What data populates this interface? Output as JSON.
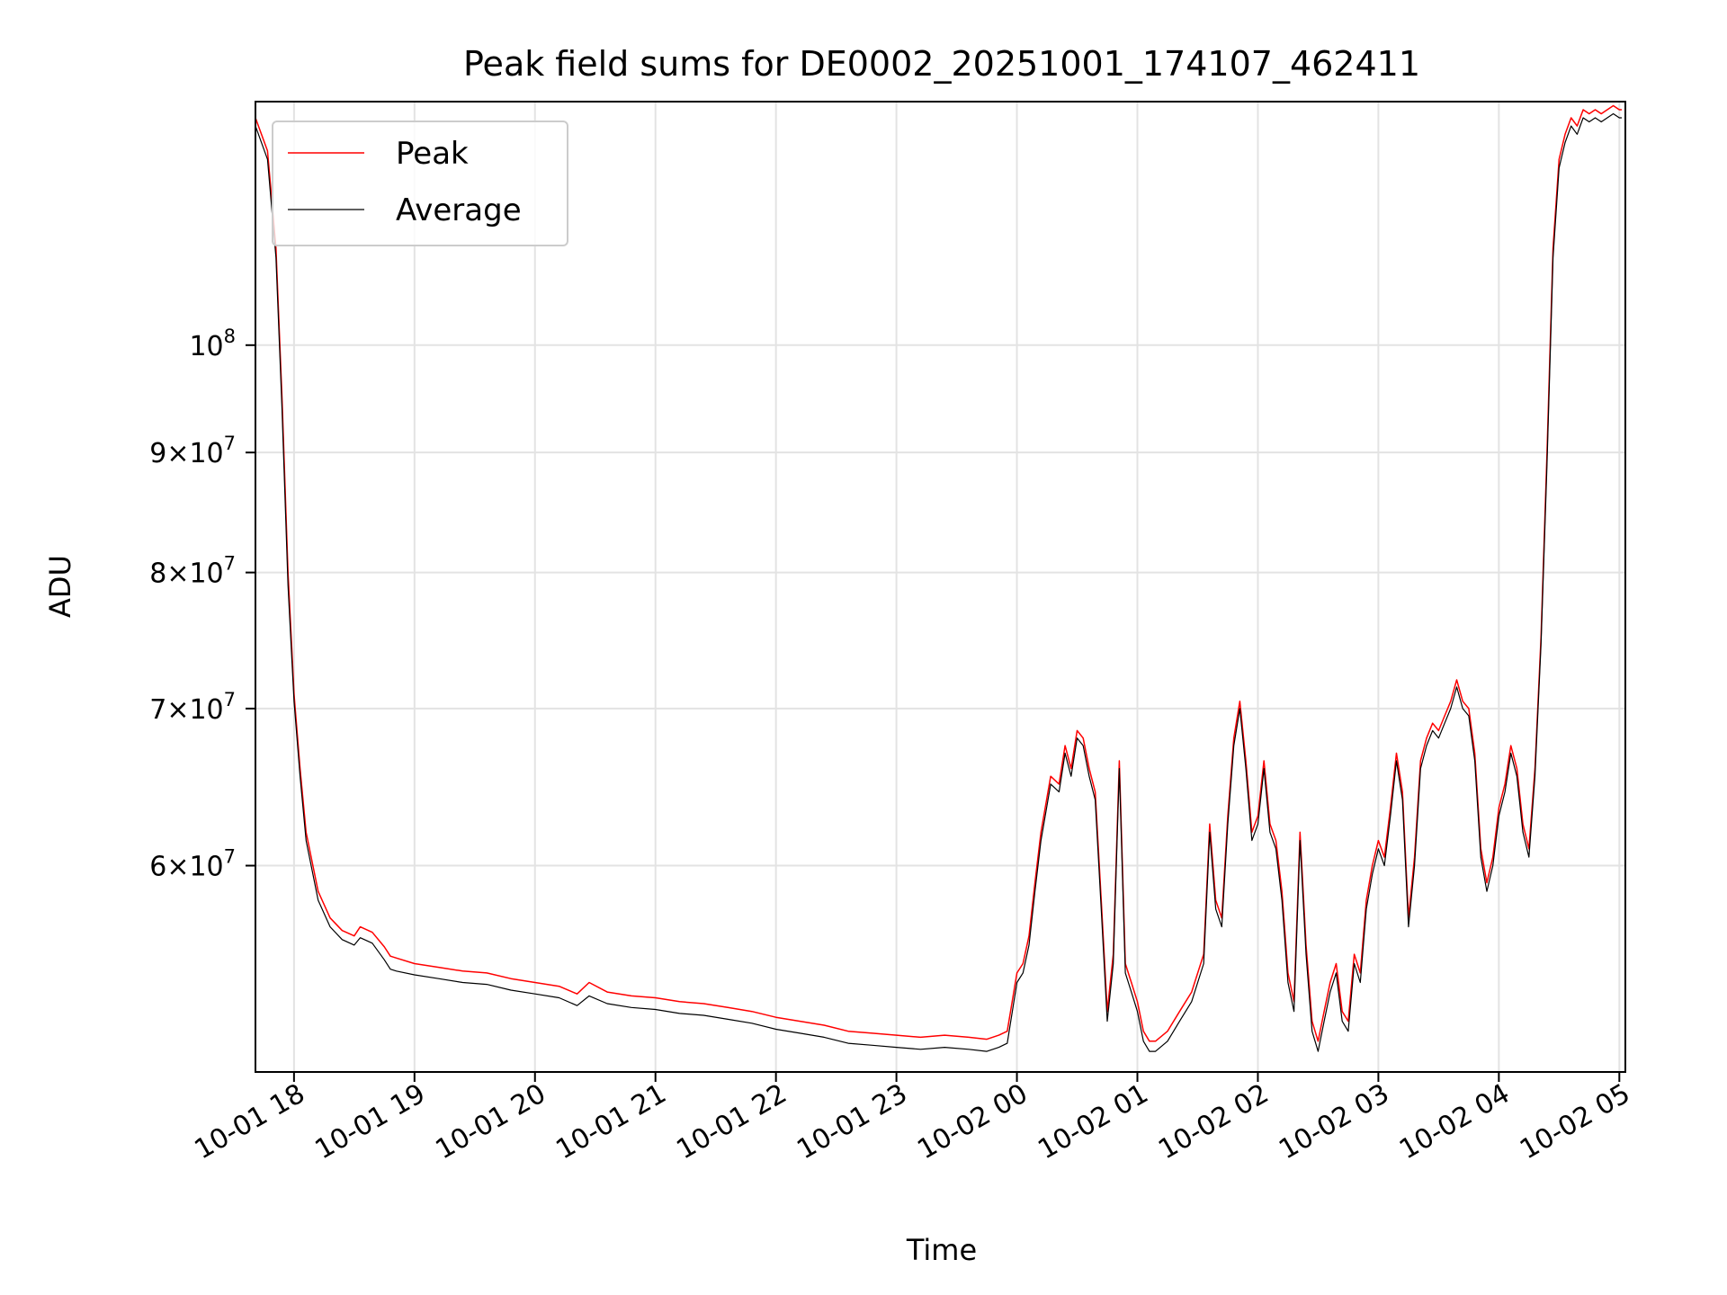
{
  "chart_data": {
    "type": "line",
    "title": "Peak field sums for DE0002_20251001_174107_462411",
    "xlabel": "Time",
    "ylabel": "ADU",
    "yscale": "log",
    "ylim": [
      49000000,
      127000000
    ],
    "xlim_hours": [
      17.68,
      29.05
    ],
    "grid": true,
    "legend_position": "top-left",
    "x_ticks": [
      {
        "hour": 18,
        "label": "10-01 18"
      },
      {
        "hour": 19,
        "label": "10-01 19"
      },
      {
        "hour": 20,
        "label": "10-01 20"
      },
      {
        "hour": 21,
        "label": "10-01 21"
      },
      {
        "hour": 22,
        "label": "10-01 22"
      },
      {
        "hour": 23,
        "label": "10-01 23"
      },
      {
        "hour": 24,
        "label": "10-02 00"
      },
      {
        "hour": 25,
        "label": "10-02 01"
      },
      {
        "hour": 26,
        "label": "10-02 02"
      },
      {
        "hour": 27,
        "label": "10-02 03"
      },
      {
        "hour": 28,
        "label": "10-02 04"
      },
      {
        "hour": 29,
        "label": "10-02 05"
      }
    ],
    "y_ticks": [
      {
        "value": 60000000,
        "mantissa": "6",
        "exponent": "7"
      },
      {
        "value": 70000000,
        "mantissa": "7",
        "exponent": "7"
      },
      {
        "value": 80000000,
        "mantissa": "8",
        "exponent": "7"
      },
      {
        "value": 90000000,
        "mantissa": "9",
        "exponent": "7"
      },
      {
        "value": 100000000,
        "mantissa": "",
        "exponent": "8"
      }
    ],
    "series": [
      {
        "name": "Peak",
        "color": "#ff0000",
        "x_hours": [
          17.68,
          17.78,
          17.85,
          17.9,
          17.95,
          18.0,
          18.05,
          18.1,
          18.2,
          18.3,
          18.4,
          18.5,
          18.55,
          18.65,
          18.75,
          18.8,
          18.85,
          19.0,
          19.2,
          19.4,
          19.6,
          19.8,
          20.0,
          20.2,
          20.35,
          20.45,
          20.6,
          20.8,
          21.0,
          21.2,
          21.4,
          21.6,
          21.8,
          22.0,
          22.2,
          22.4,
          22.6,
          22.8,
          23.0,
          23.2,
          23.4,
          23.6,
          23.75,
          23.85,
          23.92,
          24.0,
          24.05,
          24.1,
          24.15,
          24.2,
          24.28,
          24.35,
          24.4,
          24.45,
          24.5,
          24.55,
          24.6,
          24.65,
          24.7,
          24.75,
          24.8,
          24.85,
          24.9,
          24.95,
          25.0,
          25.05,
          25.1,
          25.15,
          25.25,
          25.35,
          25.45,
          25.55,
          25.6,
          25.65,
          25.7,
          25.75,
          25.8,
          25.85,
          25.9,
          25.95,
          26.0,
          26.05,
          26.1,
          26.15,
          26.2,
          26.25,
          26.3,
          26.35,
          26.4,
          26.45,
          26.5,
          26.55,
          26.6,
          26.65,
          26.7,
          26.75,
          26.8,
          26.85,
          26.9,
          26.95,
          27.0,
          27.05,
          27.1,
          27.15,
          27.2,
          27.25,
          27.3,
          27.35,
          27.4,
          27.45,
          27.5,
          27.55,
          27.6,
          27.65,
          27.7,
          27.75,
          27.8,
          27.85,
          27.9,
          27.95,
          28.0,
          28.05,
          28.1,
          28.15,
          28.2,
          28.25,
          28.3,
          28.35,
          28.4,
          28.45,
          28.5,
          28.55,
          28.6,
          28.65,
          28.7,
          28.75,
          28.8,
          28.85,
          28.9,
          28.95,
          29.0,
          29.02
        ],
        "values": [
          125000000,
          121000000,
          110000000,
          95000000,
          80000000,
          71000000,
          66000000,
          62000000,
          58500000,
          57000000,
          56300000,
          56000000,
          56500000,
          56200000,
          55400000,
          54900000,
          54800000,
          54500000,
          54300000,
          54100000,
          54000000,
          53700000,
          53500000,
          53300000,
          52900000,
          53500000,
          53000000,
          52800000,
          52700000,
          52500000,
          52400000,
          52200000,
          52000000,
          51700000,
          51500000,
          51300000,
          51000000,
          50900000,
          50800000,
          50700000,
          50800000,
          50700000,
          50600000,
          50800000,
          51000000,
          54000000,
          54500000,
          56000000,
          59000000,
          62000000,
          65500000,
          65000000,
          67500000,
          66000000,
          68500000,
          68000000,
          66000000,
          64500000,
          58000000,
          52000000,
          55000000,
          66500000,
          54500000,
          53500000,
          52500000,
          51000000,
          50500000,
          50500000,
          51000000,
          52000000,
          53000000,
          55000000,
          62500000,
          58000000,
          57000000,
          63000000,
          68000000,
          70500000,
          66500000,
          62000000,
          63000000,
          66500000,
          62500000,
          61500000,
          58500000,
          54000000,
          52500000,
          62000000,
          55500000,
          51500000,
          50500000,
          52000000,
          53500000,
          54500000,
          52000000,
          51500000,
          55000000,
          54000000,
          58000000,
          60000000,
          61500000,
          60500000,
          63500000,
          67000000,
          64500000,
          57000000,
          60500000,
          66500000,
          68000000,
          69000000,
          68500000,
          69500000,
          70500000,
          72000000,
          70500000,
          70000000,
          67000000,
          61000000,
          59000000,
          60500000,
          63500000,
          65000000,
          67500000,
          66000000,
          62500000,
          61000000,
          66000000,
          75000000,
          90000000,
          110000000,
          120000000,
          123000000,
          125000000,
          124000000,
          126000000,
          125500000,
          126000000,
          125500000,
          126000000,
          126500000,
          126000000,
          126000000
        ],
        "line_width": 1.5
      },
      {
        "name": "Average",
        "color": "#000000",
        "x_hours": [
          17.68,
          17.78,
          17.85,
          17.9,
          17.95,
          18.0,
          18.05,
          18.1,
          18.2,
          18.3,
          18.4,
          18.5,
          18.55,
          18.65,
          18.75,
          18.8,
          18.85,
          19.0,
          19.2,
          19.4,
          19.6,
          19.8,
          20.0,
          20.2,
          20.35,
          20.45,
          20.6,
          20.8,
          21.0,
          21.2,
          21.4,
          21.6,
          21.8,
          22.0,
          22.2,
          22.4,
          22.6,
          22.8,
          23.0,
          23.2,
          23.4,
          23.6,
          23.75,
          23.85,
          23.92,
          24.0,
          24.05,
          24.1,
          24.15,
          24.2,
          24.28,
          24.35,
          24.4,
          24.45,
          24.5,
          24.55,
          24.6,
          24.65,
          24.7,
          24.75,
          24.8,
          24.85,
          24.9,
          24.95,
          25.0,
          25.05,
          25.1,
          25.15,
          25.25,
          25.35,
          25.45,
          25.55,
          25.6,
          25.65,
          25.7,
          25.75,
          25.8,
          25.85,
          25.9,
          25.95,
          26.0,
          26.05,
          26.1,
          26.15,
          26.2,
          26.25,
          26.3,
          26.35,
          26.4,
          26.45,
          26.5,
          26.55,
          26.6,
          26.65,
          26.7,
          26.75,
          26.8,
          26.85,
          26.9,
          26.95,
          27.0,
          27.05,
          27.1,
          27.15,
          27.2,
          27.25,
          27.3,
          27.35,
          27.4,
          27.45,
          27.5,
          27.55,
          27.6,
          27.65,
          27.7,
          27.75,
          27.8,
          27.85,
          27.9,
          27.95,
          28.0,
          28.05,
          28.1,
          28.15,
          28.2,
          28.25,
          28.3,
          28.35,
          28.4,
          28.45,
          28.5,
          28.55,
          28.6,
          28.65,
          28.7,
          28.75,
          28.8,
          28.85,
          28.9,
          28.95,
          29.0,
          29.02
        ],
        "values": [
          124000000,
          120000000,
          109000000,
          94000000,
          79000000,
          70500000,
          65500000,
          61500000,
          58000000,
          56500000,
          55800000,
          55500000,
          55900000,
          55600000,
          54700000,
          54200000,
          54100000,
          53900000,
          53700000,
          53500000,
          53400000,
          53100000,
          52900000,
          52700000,
          52300000,
          52800000,
          52400000,
          52200000,
          52100000,
          51900000,
          51800000,
          51600000,
          51400000,
          51100000,
          50900000,
          50700000,
          50400000,
          50300000,
          50200000,
          50100000,
          50200000,
          50100000,
          50000000,
          50200000,
          50400000,
          53500000,
          54000000,
          55500000,
          58500000,
          61500000,
          65000000,
          64500000,
          67000000,
          65500000,
          68000000,
          67500000,
          65500000,
          64000000,
          57500000,
          51500000,
          54500000,
          66000000,
          54000000,
          53000000,
          52000000,
          50500000,
          50000000,
          50000000,
          50500000,
          51500000,
          52500000,
          54500000,
          62000000,
          57500000,
          56500000,
          62500000,
          67500000,
          70000000,
          66000000,
          61500000,
          62500000,
          66000000,
          62000000,
          61000000,
          58000000,
          53500000,
          52000000,
          61500000,
          55000000,
          51000000,
          50000000,
          51500000,
          53000000,
          54000000,
          51500000,
          51000000,
          54500000,
          53500000,
          57500000,
          59500000,
          61000000,
          60000000,
          63000000,
          66500000,
          64000000,
          56500000,
          60000000,
          66000000,
          67500000,
          68500000,
          68000000,
          69000000,
          70000000,
          71500000,
          70000000,
          69500000,
          66500000,
          60500000,
          58500000,
          60000000,
          63000000,
          64500000,
          67000000,
          65500000,
          62000000,
          60500000,
          65500000,
          74500000,
          89000000,
          109000000,
          119000000,
          122000000,
          124000000,
          123000000,
          125000000,
          124500000,
          125000000,
          124500000,
          125000000,
          125500000,
          125000000,
          125000000
        ],
        "line_width": 1.2
      }
    ]
  }
}
